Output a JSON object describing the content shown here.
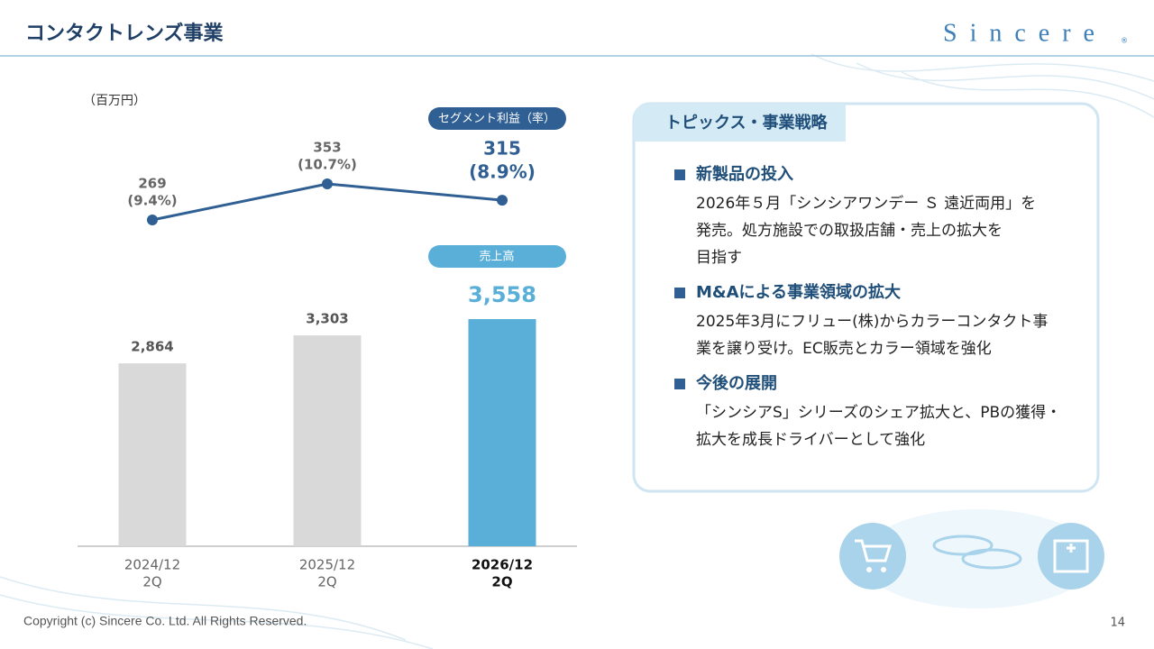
{
  "header": {
    "title": "コンタクトレンズ事業",
    "logo": "Sincere",
    "logo_mark": "®"
  },
  "chart_data": {
    "type": "combo",
    "unit_label": "（百万円）",
    "categories": [
      "2024/12",
      "2025/12",
      "2026/12"
    ],
    "periods": [
      "2Q",
      "2Q",
      "2Q"
    ],
    "series": [
      {
        "name": "売上高",
        "kind": "bar",
        "color": "#d9d9d9",
        "highlight_color": "#5aafd8",
        "badge_color": "#5aafd8",
        "values": [
          2864,
          3303,
          3558
        ],
        "value_labels": [
          "2,864",
          "3,303",
          "3,558"
        ]
      },
      {
        "name": "セグメント利益（率）",
        "kind": "line",
        "color": "#2f5f93",
        "badge_color": "#2f5f93",
        "values": [
          269,
          353,
          315
        ],
        "rate_labels": [
          "(9.4%)",
          "(10.7%)",
          "(8.9%)"
        ]
      }
    ]
  },
  "topics": {
    "title": "トピックス・事業戦略",
    "items": [
      {
        "heading": "新製品の投入",
        "lines": [
          "2026年５月「シンシアワンデー Ｓ 遠近両用」を",
          "発売。処方施設での取扱店舗・売上の拡大を",
          "目指す"
        ]
      },
      {
        "heading": "M&Aによる事業領域の拡大",
        "lines": [
          "2025年3月にフリュー(株)からカラーコンタクト事",
          "業を譲り受け。EC販売とカラー領域を強化"
        ]
      },
      {
        "heading": "今後の展開",
        "lines": [
          "「シンシアS」シリーズのシェア拡大と、PBの獲得・",
          "拡大を成長ドライバーとして強化"
        ]
      }
    ]
  },
  "footer": {
    "copyright": "Copyright (c) Sincere Co. Ltd. All Rights Reserved.",
    "page": "14"
  }
}
